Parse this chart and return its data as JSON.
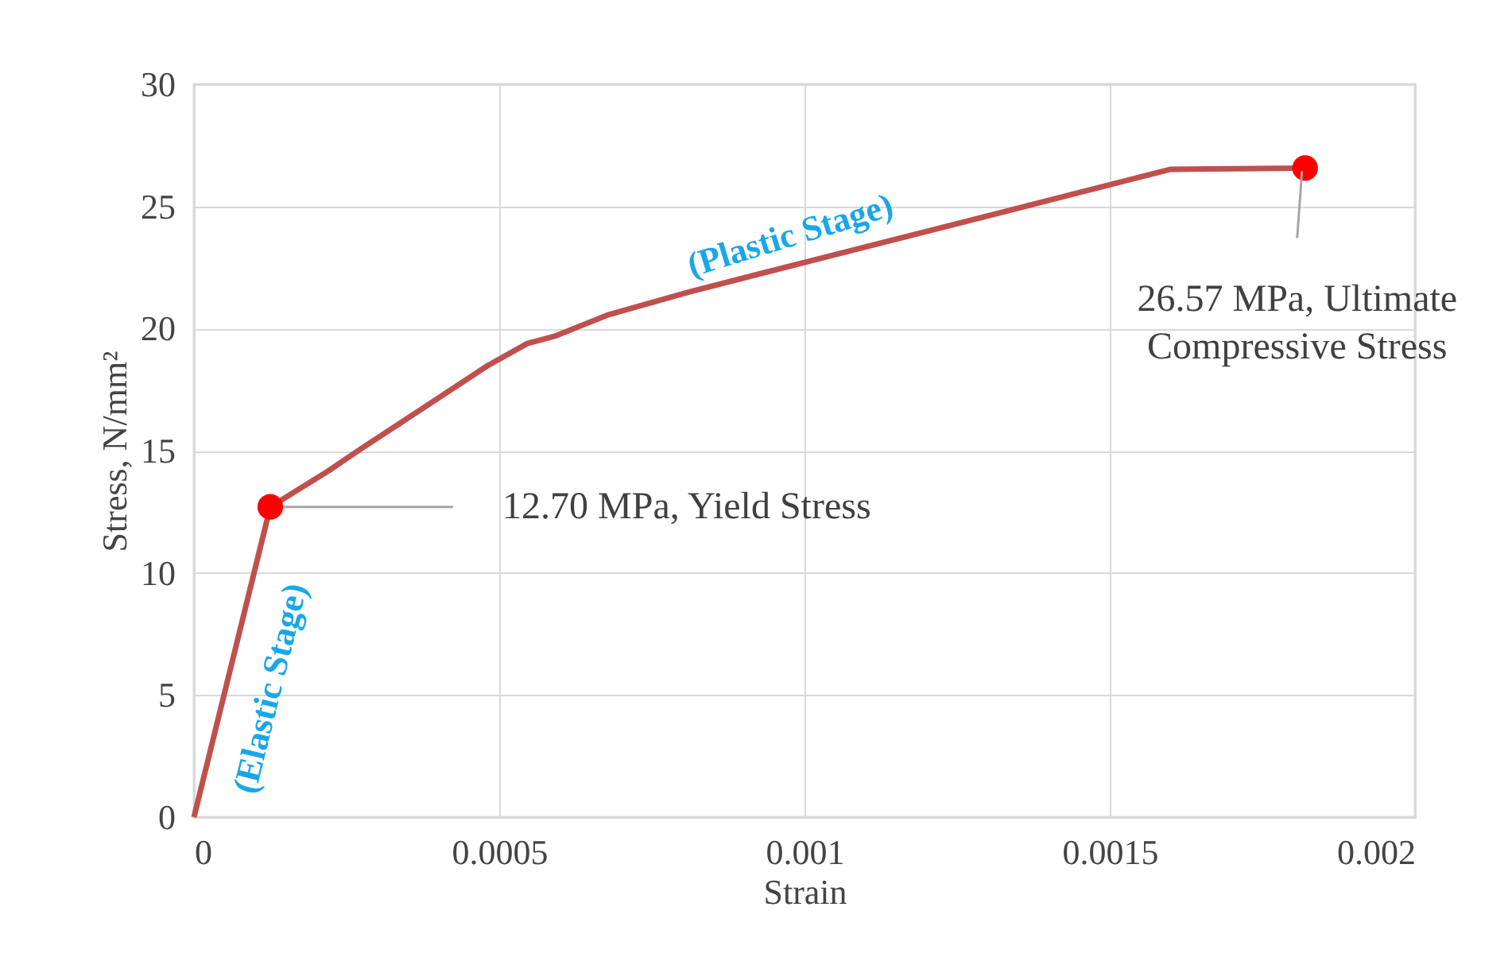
{
  "chart_data": {
    "type": "line",
    "xlabel": "Strain",
    "ylabel": "Stress, N/mm²",
    "xlim": [
      0,
      0.002
    ],
    "xticks": [
      0,
      0.0005,
      0.001,
      0.0015,
      0.002
    ],
    "ylim": [
      0,
      30
    ],
    "yticks": [
      0,
      5,
      10,
      15,
      20,
      25,
      30
    ],
    "grid": true,
    "series": [
      {
        "color": "#c0504d",
        "marker": "none",
        "x": [
          0,
          0.000125,
          0.00022,
          0.000272,
          0.000481,
          0.000546,
          0.00059,
          0.000677,
          0.000812,
          0.000933,
          0.0016,
          0.00182
        ],
        "values": [
          0,
          12.7,
          14.17,
          15.05,
          18.48,
          19.39,
          19.68,
          20.55,
          21.5,
          22.28,
          26.52,
          26.57
        ]
      },
      {
        "type": "scatter",
        "color": "#ff0000",
        "marker": "circle",
        "x": [
          0.000125,
          0.00182
        ],
        "values": [
          12.7,
          26.57
        ]
      }
    ],
    "annotations": [
      {
        "text": "12.70 MPa, Yield Stress",
        "x": 0.000125,
        "y": 12.7
      },
      {
        "text": "26.57 MPa, Ultimate\nCompressive Stress",
        "x": 0.00182,
        "y": 26.57
      },
      "(Elastic Stage)",
      "(Plastic Stage)"
    ]
  }
}
